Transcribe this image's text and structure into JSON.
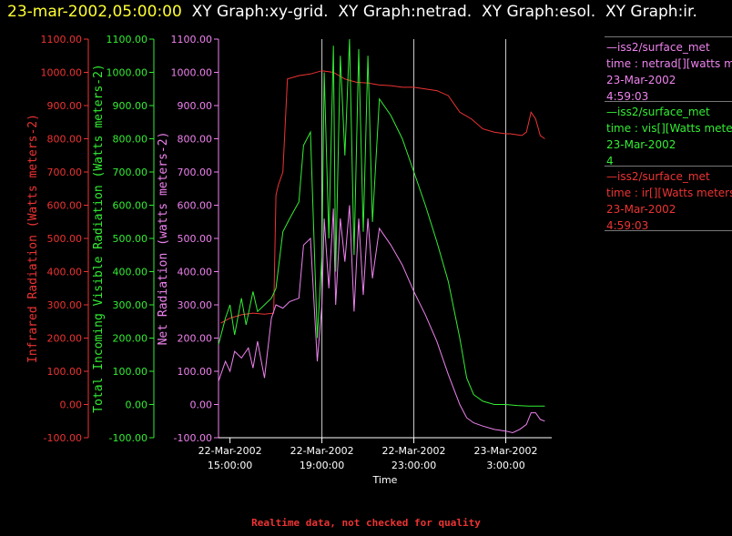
{
  "header": {
    "timestamp": "23-mar-2002,05:00:00",
    "graphs": [
      "XY Graph:xy-grid.",
      "XY Graph:netrad.",
      "XY Graph:esol.",
      "XY Graph:ir."
    ]
  },
  "footer": {
    "quality_note": "Realtime data, not checked for quality"
  },
  "legend": [
    {
      "name": "—iss2/surface_met",
      "desc": "time : netrad[][watts met",
      "date": "23-Mar-2002",
      "extra": "4:59:03",
      "color": "#ee82ee"
    },
    {
      "name": "—iss2/surface_met",
      "desc": "time : vis[][Watts meter",
      "date": "23-Mar-2002",
      "extra": "4",
      "color": "#33ee33"
    },
    {
      "name": "—iss2/surface_met",
      "desc": "time : ir[][Watts meters",
      "date": "23-Mar-2002",
      "extra": "4:59:03",
      "color": "#ee3333"
    }
  ],
  "chart_data": {
    "type": "line",
    "xlabel": "Time",
    "x_ticks": [
      {
        "hour": 15,
        "date": "22-Mar-2002",
        "time": "15:00:00"
      },
      {
        "hour": 19,
        "date": "22-Mar-2002",
        "time": "19:00:00"
      },
      {
        "hour": 23,
        "date": "22-Mar-2002",
        "time": "23:00:00"
      },
      {
        "hour": 27,
        "date": "23-Mar-2002",
        "time": "3:00:00"
      }
    ],
    "xlim_hours": [
      14.5,
      29.0
    ],
    "ylim": [
      -100,
      1100
    ],
    "y_ticks": [
      "1100.00",
      "1000.00",
      "900.00",
      "800.00",
      "700.00",
      "600.00",
      "500.00",
      "400.00",
      "300.00",
      "200.00",
      "100.00",
      "0.00",
      "-100.00"
    ],
    "y_axes": [
      {
        "label": "Infrared Radiation (Watts meters-2)",
        "color": "#ee3333"
      },
      {
        "label": "Total Incoming Visible Radiation (Watts meters-2)",
        "color": "#33ee33"
      },
      {
        "label": "Net Radiation (watts meters-2)",
        "color": "#ee82ee"
      }
    ],
    "grid_x_hours": [
      19,
      23,
      27
    ],
    "series": [
      {
        "name": "ir",
        "color": "#ee3333",
        "x": [
          14.6,
          15.0,
          15.5,
          16.0,
          16.5,
          16.9,
          17.0,
          17.1,
          17.3,
          17.5,
          18.0,
          18.5,
          19.0,
          19.5,
          20.0,
          20.5,
          21.0,
          21.5,
          22.0,
          22.5,
          23.0,
          23.5,
          24.0,
          24.5,
          25.0,
          25.5,
          26.0,
          26.5,
          27.0,
          27.2,
          27.5,
          27.7,
          27.9,
          28.1,
          28.3,
          28.5,
          28.7
        ],
        "y": [
          245,
          260,
          270,
          275,
          272,
          275,
          630,
          660,
          700,
          980,
          990,
          995,
          1005,
          1000,
          980,
          970,
          968,
          962,
          960,
          955,
          955,
          950,
          945,
          930,
          880,
          860,
          830,
          820,
          815,
          815,
          812,
          810,
          820,
          880,
          860,
          810,
          800
        ]
      },
      {
        "name": "vis",
        "color": "#33ee33",
        "x": [
          14.5,
          14.8,
          15.0,
          15.2,
          15.5,
          15.7,
          16.0,
          16.2,
          16.5,
          16.8,
          17.0,
          17.3,
          17.6,
          18.0,
          18.2,
          18.5,
          18.8,
          19.0,
          19.1,
          19.3,
          19.5,
          19.6,
          19.8,
          20.0,
          20.2,
          20.4,
          20.6,
          20.8,
          21.0,
          21.2,
          21.5,
          22.0,
          22.5,
          23.0,
          23.5,
          24.0,
          24.5,
          25.0,
          25.3,
          25.6,
          26.0,
          26.5,
          27.0,
          27.5,
          28.0,
          28.5,
          28.7
        ],
        "y": [
          180,
          260,
          300,
          210,
          320,
          240,
          340,
          280,
          300,
          320,
          350,
          520,
          560,
          610,
          780,
          820,
          200,
          450,
          1000,
          500,
          1080,
          400,
          1050,
          750,
          1100,
          450,
          1070,
          520,
          1050,
          550,
          920,
          870,
          800,
          700,
          600,
          490,
          370,
          200,
          80,
          30,
          10,
          0,
          0,
          -3,
          -5,
          -5,
          -5
        ]
      },
      {
        "name": "netrad",
        "color": "#ee82ee",
        "x": [
          14.5,
          14.8,
          15.0,
          15.2,
          15.5,
          15.8,
          16.0,
          16.2,
          16.5,
          16.8,
          17.0,
          17.3,
          17.6,
          18.0,
          18.2,
          18.5,
          18.8,
          19.0,
          19.1,
          19.3,
          19.5,
          19.6,
          19.8,
          20.0,
          20.2,
          20.4,
          20.6,
          20.8,
          21.0,
          21.2,
          21.5,
          22.0,
          22.5,
          23.0,
          23.5,
          24.0,
          24.5,
          25.0,
          25.3,
          25.6,
          26.0,
          26.5,
          27.0,
          27.3,
          27.6,
          27.9,
          28.1,
          28.3,
          28.5,
          28.7
        ],
        "y": [
          70,
          130,
          100,
          160,
          140,
          170,
          110,
          190,
          80,
          260,
          300,
          290,
          310,
          320,
          480,
          500,
          130,
          300,
          560,
          350,
          590,
          300,
          560,
          430,
          600,
          280,
          560,
          330,
          560,
          380,
          530,
          480,
          420,
          340,
          270,
          190,
          90,
          0,
          -40,
          -55,
          -65,
          -75,
          -80,
          -85,
          -75,
          -60,
          -25,
          -25,
          -45,
          -50
        ]
      }
    ]
  }
}
